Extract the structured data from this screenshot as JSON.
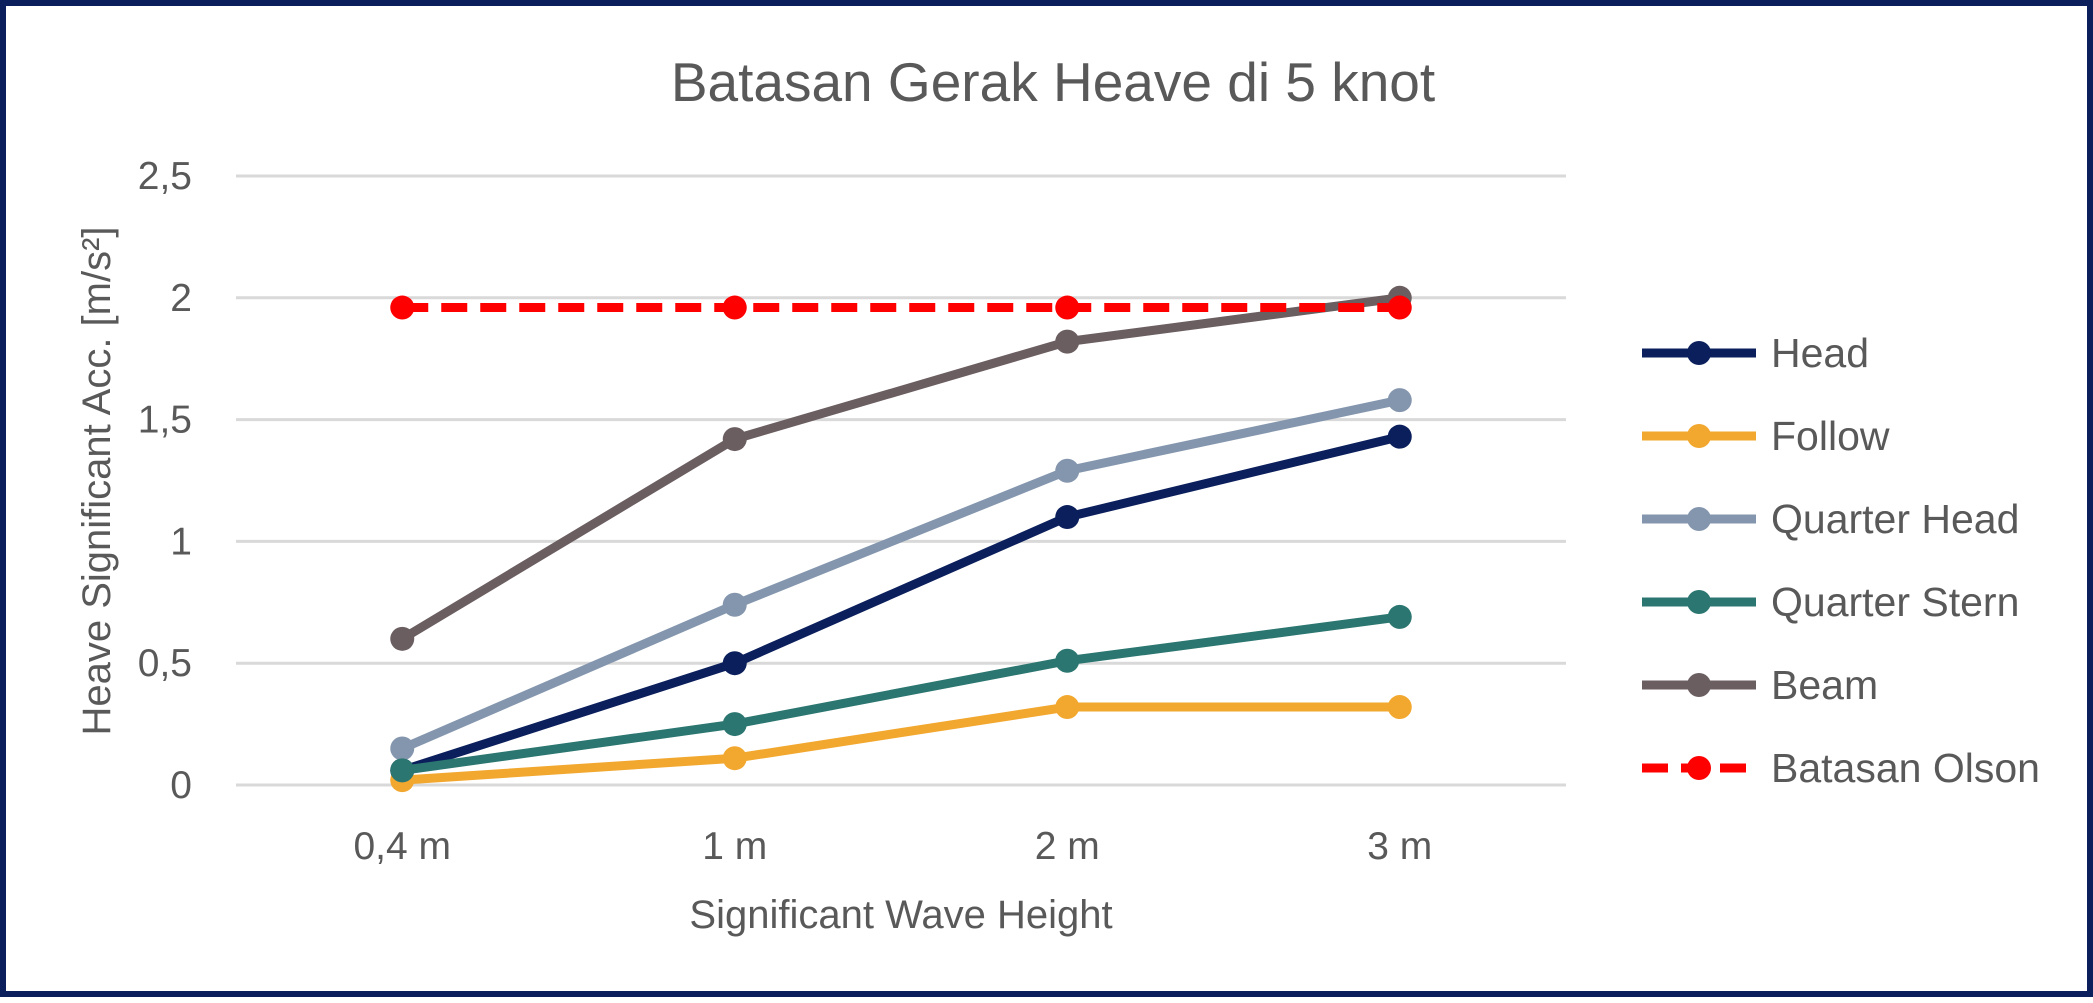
{
  "chart_data": {
    "type": "line",
    "title": "Batasan Gerak Heave di 5 knot",
    "xlabel": "Significant Wave Height",
    "ylabel": "Heave Significant Acc. [m/s²]",
    "categories": [
      "0,4 m",
      "1 m",
      "2 m",
      "3 m"
    ],
    "ylim": [
      0,
      2.5
    ],
    "yticks": [
      {
        "value": 0,
        "label": "0"
      },
      {
        "value": 0.5,
        "label": "0,5"
      },
      {
        "value": 1,
        "label": "1"
      },
      {
        "value": 1.5,
        "label": "1,5"
      },
      {
        "value": 2,
        "label": "2"
      },
      {
        "value": 2.5,
        "label": "2,5"
      }
    ],
    "grid": true,
    "legend": "right",
    "series": [
      {
        "name": "Head",
        "values": [
          0.06,
          0.5,
          1.1,
          1.43
        ],
        "color": "#0b1f5c",
        "dashed": false
      },
      {
        "name": "Follow",
        "values": [
          0.02,
          0.11,
          0.32,
          0.32
        ],
        "color": "#f2a72e",
        "dashed": false
      },
      {
        "name": "Quarter Head",
        "values": [
          0.15,
          0.74,
          1.29,
          1.58
        ],
        "color": "#8496ae",
        "dashed": false
      },
      {
        "name": "Quarter Stern",
        "values": [
          0.06,
          0.25,
          0.51,
          0.69
        ],
        "color": "#2b7670",
        "dashed": false
      },
      {
        "name": "Beam",
        "values": [
          0.6,
          1.42,
          1.82,
          2.0
        ],
        "color": "#6b5e60",
        "dashed": false
      },
      {
        "name": "Batasan Olson",
        "values": [
          1.96,
          1.96,
          1.96,
          1.96
        ],
        "color": "#ff0000",
        "dashed": true
      }
    ]
  }
}
